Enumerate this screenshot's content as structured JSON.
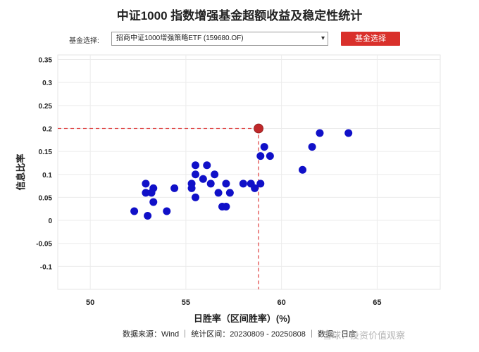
{
  "header": {
    "title": "中证1000 指数增强基金超额收益及稳定性统计"
  },
  "controls": {
    "select_label": "基金选择:",
    "selected_fund": "招商中证1000增强策略ETF (159680.OF)",
    "button_label": "基金选择"
  },
  "footer": {
    "source_text": "数据来源：Wind ｜ 统计区间：20230809 - 20250808 ｜ 数据：日度"
  },
  "watermark": {
    "text": "雪球：投资价值观察"
  },
  "colors": {
    "point": "#1010c8",
    "highlight": "#c0282a",
    "guide": "#e04848",
    "grid": "#ebebeb",
    "button": "#d9302b"
  },
  "chart_data": {
    "type": "scatter",
    "xlabel": "日胜率（区间胜率）(%)",
    "ylabel": "信息比率",
    "xlim": [
      48.3,
      68.3
    ],
    "ylim": [
      -0.15,
      0.36
    ],
    "xticks": [
      50,
      55,
      60,
      65
    ],
    "yticks": [
      -0.1,
      -0.05,
      0,
      0.05,
      0.1,
      0.15,
      0.2,
      0.25,
      0.3,
      0.35
    ],
    "grid": true,
    "series": [
      {
        "points": [
          [
            52.3,
            0.02
          ],
          [
            52.9,
            0.08
          ],
          [
            52.9,
            0.06
          ],
          [
            53.0,
            0.01
          ],
          [
            53.2,
            0.06
          ],
          [
            53.3,
            0.07
          ],
          [
            53.3,
            0.04
          ],
          [
            54.0,
            0.02
          ],
          [
            54.4,
            0.07
          ],
          [
            55.3,
            0.08
          ],
          [
            55.3,
            0.07
          ],
          [
            55.5,
            0.12
          ],
          [
            55.5,
            0.1
          ],
          [
            55.5,
            0.05
          ],
          [
            55.9,
            0.09
          ],
          [
            56.1,
            0.12
          ],
          [
            56.3,
            0.08
          ],
          [
            56.5,
            0.1
          ],
          [
            56.7,
            0.06
          ],
          [
            56.9,
            0.03
          ],
          [
            57.1,
            0.03
          ],
          [
            57.1,
            0.08
          ],
          [
            57.3,
            0.06
          ],
          [
            58.0,
            0.08
          ],
          [
            58.4,
            0.08
          ],
          [
            58.6,
            0.07
          ],
          [
            58.9,
            0.08
          ],
          [
            58.9,
            0.14
          ],
          [
            59.1,
            0.16
          ],
          [
            59.4,
            0.14
          ],
          [
            61.1,
            0.11
          ],
          [
            61.6,
            0.16
          ],
          [
            62.0,
            0.19
          ],
          [
            63.5,
            0.19
          ]
        ]
      }
    ],
    "highlight": {
      "x": 58.8,
      "y": 0.2
    }
  }
}
